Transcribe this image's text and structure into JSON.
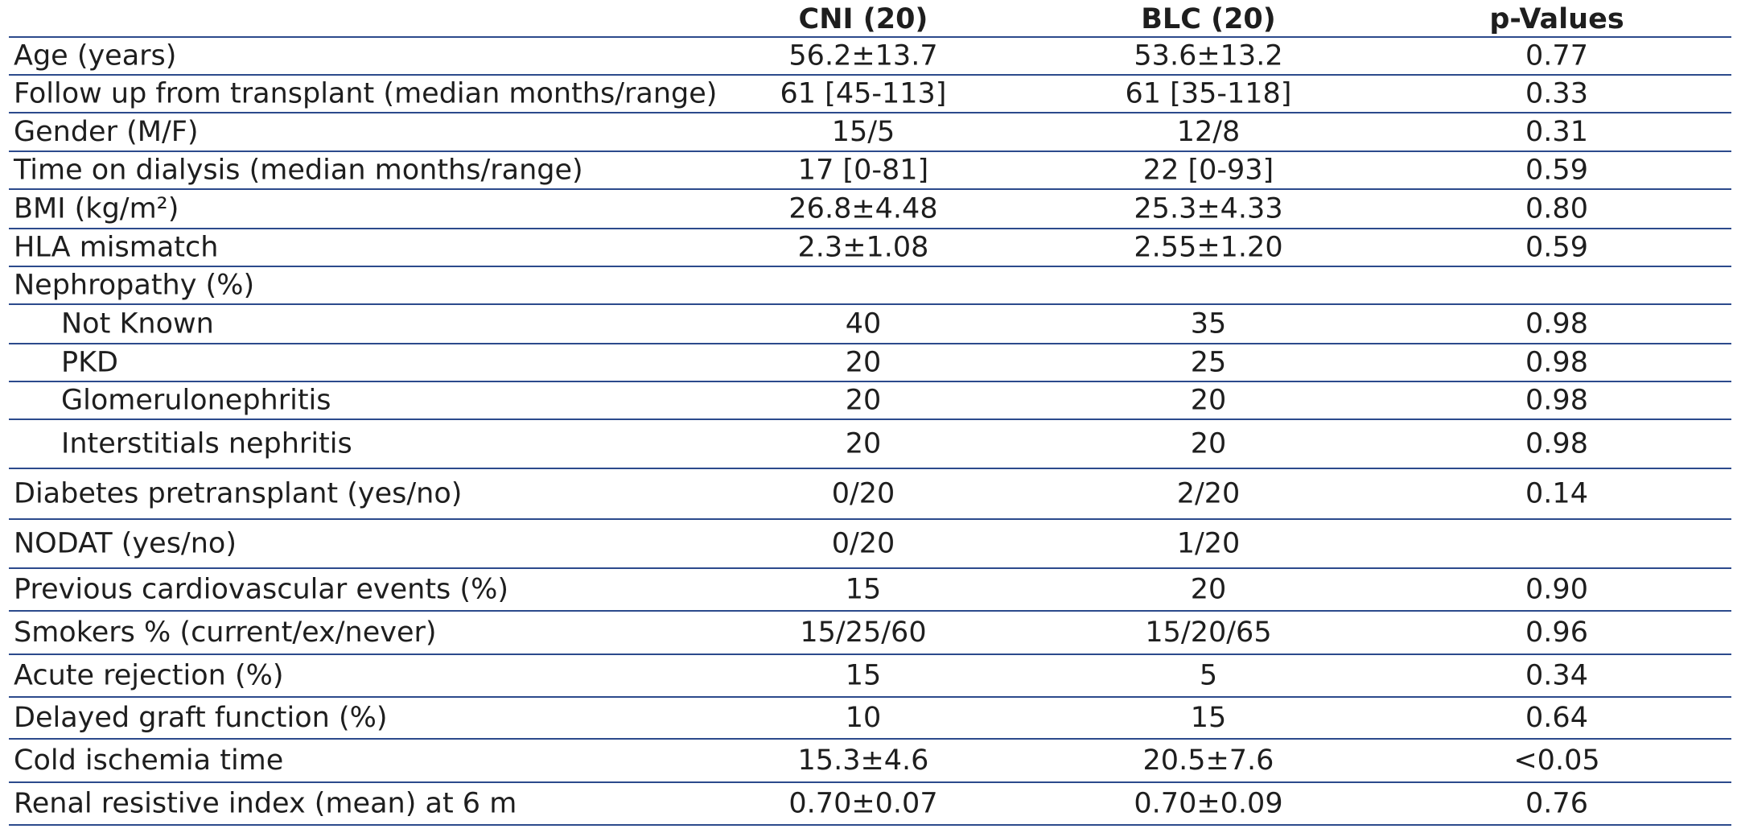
{
  "table": {
    "header": [
      "CNI (20)",
      "BLC (20)",
      "p-Values"
    ],
    "rows": [
      {
        "label": "Age (years)",
        "cells": [
          "56.2±13.7",
          "53.6±13.2",
          "0.77"
        ]
      },
      {
        "label": "Follow up from transplant (median months/range)",
        "cells": [
          "61 [45-113]",
          "61 [35-118]",
          "0.33"
        ]
      },
      {
        "label": "Gender (M/F)",
        "cells": [
          "15/5",
          "12/8",
          "0.31"
        ]
      },
      {
        "label": "Time on dialysis (median months/range)",
        "cells": [
          "17 [0-81]",
          "22 [0-93]",
          "0.59"
        ]
      },
      {
        "label": "BMI (kg/m²)",
        "cells": [
          "26.8±4.48",
          "25.3±4.33",
          "0.80"
        ]
      },
      {
        "label": "HLA mismatch",
        "cells": [
          "2.3±1.08",
          "2.55±1.20",
          "0.59"
        ]
      },
      {
        "label": "Nephropathy (%)",
        "cells": []
      },
      {
        "label": "Not Known",
        "sub": true,
        "cells": [
          "40",
          "35",
          "0.98"
        ]
      },
      {
        "label": "PKD",
        "sub": true,
        "cells": [
          "20",
          "25",
          "0.98"
        ]
      },
      {
        "label": "Glomerulonephritis",
        "sub": true,
        "cells": [
          "20",
          "20",
          "0.98"
        ]
      },
      {
        "label": "Interstitials nephritis",
        "sub": true,
        "cells": [
          "20",
          "20",
          "0.98"
        ]
      },
      {
        "label": "Diabetes pretransplant (yes/no)",
        "cells": [
          "0/20",
          "2/20",
          "0.14"
        ]
      },
      {
        "label": "NODAT (yes/no)",
        "cells": [
          "0/20",
          "1/20"
        ]
      },
      {
        "label": "Previous cardiovascular events (%)",
        "cells": [
          "15",
          "20",
          "0.90"
        ]
      },
      {
        "label": "Smokers % (current/ex/never)",
        "cells": [
          "15/25/60",
          "15/20/65",
          "0.96"
        ]
      },
      {
        "label": "Acute rejection (%)",
        "cells": [
          "15",
          "5",
          "0.34"
        ]
      },
      {
        "label": "Delayed graft function (%)",
        "cells": [
          "10",
          "15",
          "0.64"
        ]
      },
      {
        "label": "Cold ischemia time",
        "cells": [
          "15.3±4.6",
          "20.5±7.6",
          "<0.05"
        ]
      },
      {
        "label": "Renal resistive index (mean) at 6 m",
        "cells": [
          "0.70±0.07",
          "0.70±0.09",
          "0.76"
        ]
      }
    ]
  }
}
